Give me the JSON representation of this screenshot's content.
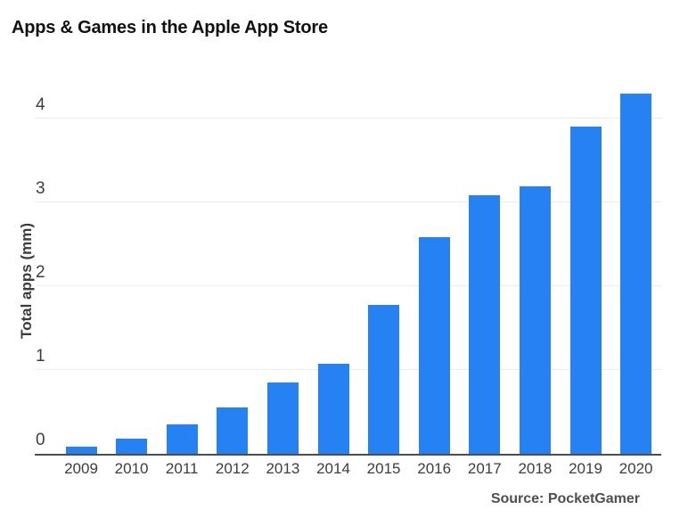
{
  "title": "Apps & Games in the Apple App Store",
  "source": "Source: PocketGamer",
  "colors": {
    "background": "#ffffff",
    "bar": "#2681f2",
    "axis": "#4d4d4d",
    "grid": "#ececec",
    "title_text": "#111111",
    "tick_text": "#3d3d3d",
    "source_text": "#4f4f4f"
  },
  "chart_data": {
    "type": "bar",
    "title": "Apps & Games in the Apple App Store",
    "xlabel": "",
    "ylabel": "Total apps (mm)",
    "categories": [
      "2009",
      "2010",
      "2011",
      "2012",
      "2013",
      "2014",
      "2015",
      "2016",
      "2017",
      "2018",
      "2019",
      "2020"
    ],
    "values": [
      0.09,
      0.18,
      0.35,
      0.55,
      0.85,
      1.07,
      1.78,
      2.58,
      3.09,
      3.19,
      3.9,
      4.3
    ],
    "yticks": [
      0,
      1,
      2,
      3,
      4
    ],
    "ylim": [
      0,
      4.38
    ],
    "grid": true,
    "legend": "none",
    "bar_color": "#2681f2",
    "source": "Source: PocketGamer"
  }
}
